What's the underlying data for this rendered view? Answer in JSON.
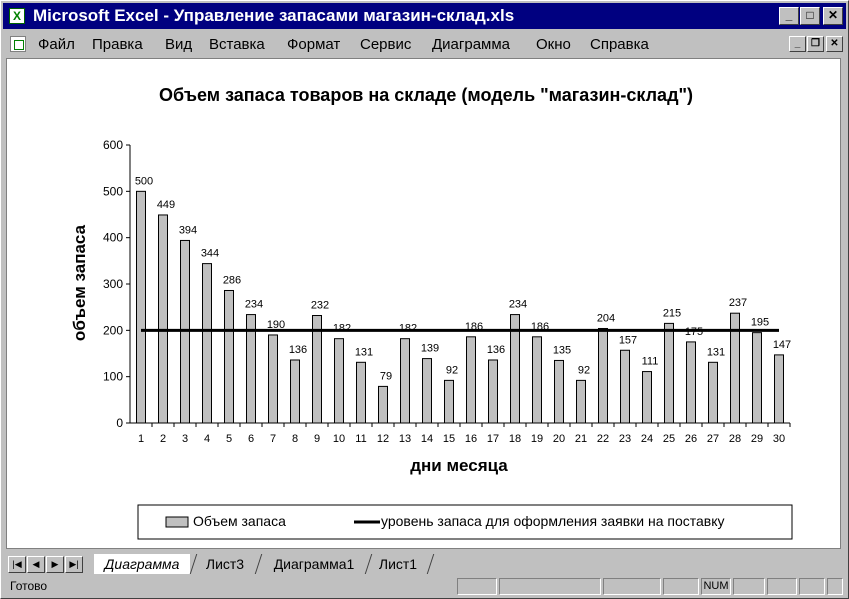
{
  "window": {
    "title": "Microsoft Excel - Управление запасами магазин-склад.xls",
    "minimize_glyph": "_",
    "maximize_glyph": "□",
    "close_glyph": "✕",
    "icon": "excel-icon"
  },
  "menu": {
    "items": [
      "Файл",
      "Правка",
      "Вид",
      "Вставка",
      "Формат",
      "Сервис",
      "Диаграмма",
      "Окно",
      "Справка"
    ],
    "doc_icon": "workbook-icon",
    "mdi_minimize_glyph": "_",
    "mdi_restore_glyph": "❐",
    "mdi_close_glyph": "✕"
  },
  "chart_data": {
    "type": "bar",
    "title": "Объем запаса товаров на складе (модель \"магазин-склад\")",
    "xlabel": "дни месяца",
    "ylabel": "объем запаса",
    "ylim": [
      0,
      600
    ],
    "yticks": [
      0,
      100,
      200,
      300,
      400,
      500,
      600
    ],
    "categories": [
      "1",
      "2",
      "3",
      "4",
      "5",
      "6",
      "7",
      "8",
      "9",
      "10",
      "11",
      "12",
      "13",
      "14",
      "15",
      "16",
      "17",
      "18",
      "19",
      "20",
      "21",
      "22",
      "23",
      "24",
      "25",
      "26",
      "27",
      "28",
      "29",
      "30"
    ],
    "series": [
      {
        "name": "Объем запаса",
        "type": "bar",
        "color": "#c0c0c0",
        "values": [
          500,
          449,
          394,
          344,
          286,
          234,
          190,
          136,
          232,
          182,
          131,
          79,
          182,
          139,
          92,
          186,
          136,
          234,
          186,
          135,
          92,
          204,
          157,
          111,
          215,
          175,
          131,
          237,
          195,
          147
        ]
      },
      {
        "name": "уровень запаса для оформления заявки на поставку",
        "type": "line",
        "color": "#000000",
        "values": [
          200,
          200,
          200,
          200,
          200,
          200,
          200,
          200,
          200,
          200,
          200,
          200,
          200,
          200,
          200,
          200,
          200,
          200,
          200,
          200,
          200,
          200,
          200,
          200,
          200,
          200,
          200,
          200,
          200,
          200
        ]
      }
    ],
    "data_labels": true,
    "grid": false,
    "legend_position": "bottom"
  },
  "sheets": {
    "tabs": [
      "Диаграмма",
      "Лист3",
      "Диаграмма1",
      "Лист1"
    ],
    "active": "Диаграмма",
    "nav": [
      "|◀",
      "◀",
      "▶",
      "▶|"
    ]
  },
  "status": {
    "text": "Готово",
    "num": "NUM"
  }
}
